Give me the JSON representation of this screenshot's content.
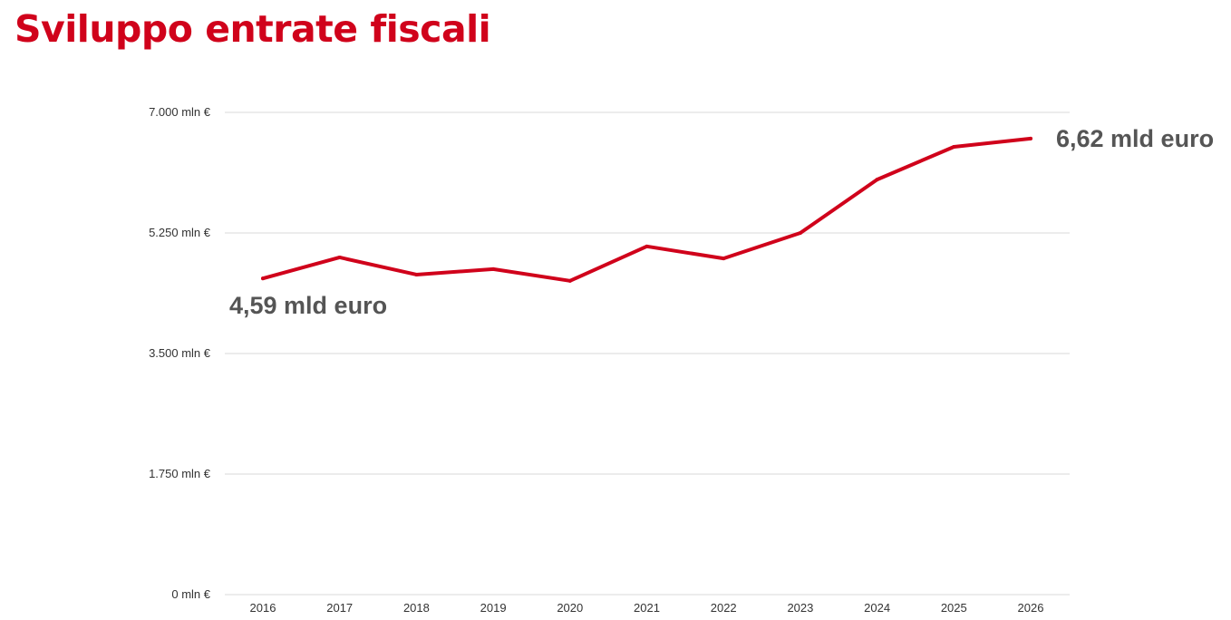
{
  "chart_data": {
    "type": "line",
    "title": "Sviluppo entrate fiscali",
    "xlabel": "",
    "ylabel": "",
    "categories": [
      "2016",
      "2017",
      "2018",
      "2019",
      "2020",
      "2021",
      "2022",
      "2023",
      "2024",
      "2025",
      "2026"
    ],
    "series": [
      {
        "name": "Entrate fiscali",
        "color": "#d0021b",
        "values": [
          4590,
          4895,
          4645,
          4725,
          4555,
          5055,
          4880,
          5250,
          6025,
          6500,
          6620
        ]
      }
    ],
    "ylim": [
      0,
      7000
    ],
    "yticks": [
      0,
      1750,
      3500,
      5250,
      7000
    ],
    "ytick_labels": [
      "0 mln €",
      "1.750 mln €",
      "3.500 mln €",
      "5.250 mln €",
      "7.000 mln €"
    ],
    "grid": true,
    "legend": "none",
    "annotations": [
      {
        "text": "4,59 mld euro",
        "category": "2016",
        "value": 4590,
        "placement": "below-left"
      },
      {
        "text": "6,62 mld euro",
        "category": "2026",
        "value": 6620,
        "placement": "right"
      }
    ]
  }
}
